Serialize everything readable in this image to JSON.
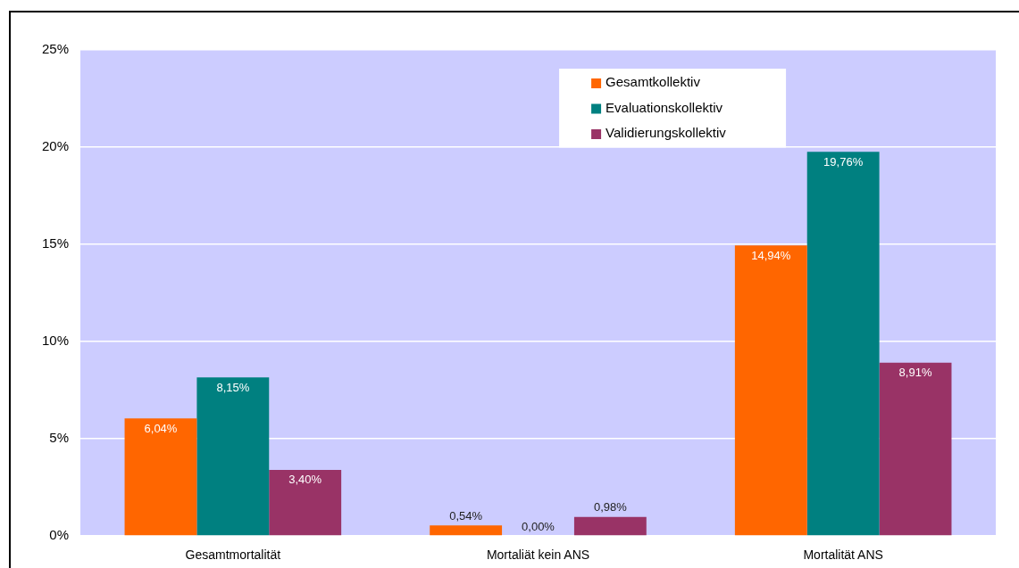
{
  "chart_data": {
    "type": "bar",
    "categories": [
      "Gesamtmortalität",
      "Mortaliät kein ANS",
      "Mortalität ANS"
    ],
    "series": [
      {
        "name": "Gesamtkollektiv",
        "color": "#ff6600",
        "values": [
          6.04,
          0.54,
          14.94
        ],
        "value_labels": [
          "6,04%",
          "0,54%",
          "14,94%"
        ]
      },
      {
        "name": "Evaluationskollektiv",
        "color": "#008080",
        "values": [
          8.15,
          0.0,
          19.76
        ],
        "value_labels": [
          "8,15%",
          "0,00%",
          "19,76%"
        ]
      },
      {
        "name": "Validierungskollektiv",
        "color": "#993366",
        "values": [
          3.4,
          0.98,
          8.91
        ],
        "value_labels": [
          "3,40%",
          "0,98%",
          "8,91%"
        ]
      }
    ],
    "ylim": [
      0,
      25
    ],
    "yticks": [
      {
        "value": 0,
        "label": "0%"
      },
      {
        "value": 5,
        "label": "5%"
      },
      {
        "value": 10,
        "label": "10%"
      },
      {
        "value": 15,
        "label": "15%"
      },
      {
        "value": 20,
        "label": "20%"
      },
      {
        "value": 25,
        "label": "25%"
      }
    ],
    "grid": "y",
    "legend": "top right"
  }
}
